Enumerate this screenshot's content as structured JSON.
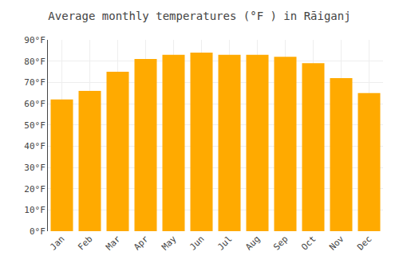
{
  "chart_data": {
    "type": "bar",
    "title": "Average monthly temperatures (°F ) in Rāiganj",
    "categories": [
      "Jan",
      "Feb",
      "Mar",
      "Apr",
      "May",
      "Jun",
      "Jul",
      "Aug",
      "Sep",
      "Oct",
      "Nov",
      "Dec"
    ],
    "values": [
      62,
      66,
      75,
      81,
      83,
      84,
      83,
      83,
      82,
      79,
      72,
      65
    ],
    "color": "#FFAA00",
    "ylim": [
      0,
      90
    ],
    "yticks": [
      {
        "value": 0,
        "label": "0°F"
      },
      {
        "value": 10,
        "label": "10°F"
      },
      {
        "value": 20,
        "label": "20°F"
      },
      {
        "value": 30,
        "label": "30°F"
      },
      {
        "value": 40,
        "label": "40°F"
      },
      {
        "value": 50,
        "label": "50°F"
      },
      {
        "value": 60,
        "label": "60°F"
      },
      {
        "value": 70,
        "label": "70°F"
      },
      {
        "value": 80,
        "label": "80°F"
      },
      {
        "value": 90,
        "label": "90°F"
      }
    ],
    "grid": true
  }
}
